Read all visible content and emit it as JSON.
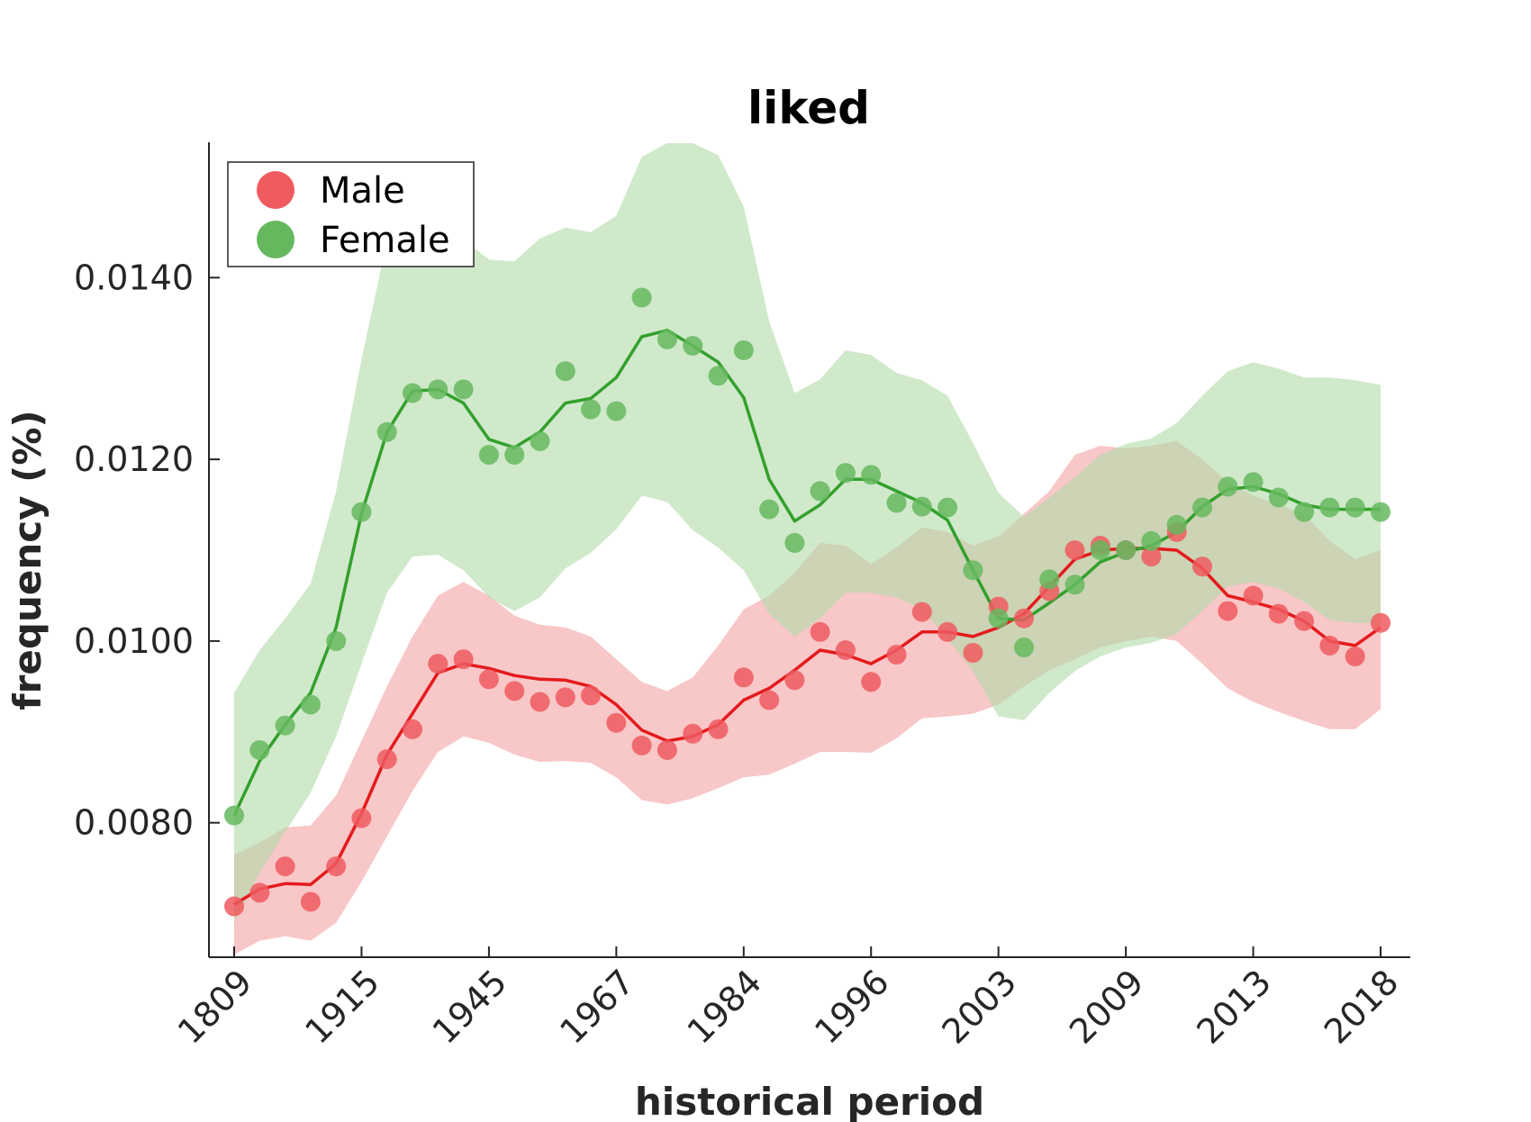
{
  "chart_data": {
    "type": "line",
    "title": "liked",
    "xlabel": "historical period",
    "ylabel": "frequency (%)",
    "x_tick_labels": [
      "1809",
      "1915",
      "1945",
      "1967",
      "1984",
      "1996",
      "2003",
      "2009",
      "2013",
      "2018"
    ],
    "y_ticks": [
      0.008,
      0.01,
      0.012,
      0.014
    ],
    "y_tick_labels": [
      "0.0080",
      "0.0100",
      "0.0120",
      "0.0140"
    ],
    "ylim": [
      0.00652,
      0.01549
    ],
    "grid": false,
    "legend_position": "top-left",
    "series": [
      {
        "name": "Male",
        "color": "#e41a1c",
        "point_color": "#ef5b5f",
        "band_color": "#f4a1a3",
        "points": [
          0.00708,
          0.00723,
          0.00752,
          0.00713,
          0.00752,
          0.00805,
          0.0087,
          0.00903,
          0.00975,
          0.0098,
          0.00958,
          0.00945,
          0.00933,
          0.00938,
          0.0094,
          0.0091,
          0.00885,
          0.0088,
          0.00898,
          0.00903,
          0.0096,
          0.00935,
          0.00957,
          0.0101,
          0.0099,
          0.00955,
          0.00985,
          0.01032,
          0.0101,
          0.00987,
          0.01038,
          0.01025,
          0.01055,
          0.011,
          0.01105,
          0.011,
          0.01093,
          0.0112,
          0.01082,
          0.01033,
          0.0105,
          0.0103,
          0.01022,
          0.00995,
          0.00983,
          0.0102
        ],
        "trend": [
          0.0071,
          0.00727,
          0.00733,
          0.00732,
          0.00755,
          0.0081,
          0.00875,
          0.0092,
          0.00965,
          0.00975,
          0.0097,
          0.00962,
          0.00958,
          0.00957,
          0.0095,
          0.0093,
          0.00902,
          0.0089,
          0.00895,
          0.00908,
          0.00935,
          0.00948,
          0.00968,
          0.0099,
          0.00985,
          0.00975,
          0.0099,
          0.0101,
          0.0101,
          0.01005,
          0.01015,
          0.0103,
          0.0106,
          0.0109,
          0.011,
          0.01102,
          0.01102,
          0.011,
          0.0108,
          0.0105,
          0.01043,
          0.01035,
          0.01022,
          0.01,
          0.00995,
          0.01015
        ],
        "band_upper": [
          0.00765,
          0.00778,
          0.00795,
          0.00797,
          0.0083,
          0.0089,
          0.0095,
          0.01005,
          0.0105,
          0.01065,
          0.0105,
          0.01028,
          0.01018,
          0.01015,
          0.01005,
          0.0098,
          0.00955,
          0.00945,
          0.0096,
          0.00995,
          0.01035,
          0.0105,
          0.01075,
          0.01108,
          0.01105,
          0.01085,
          0.01103,
          0.01125,
          0.0112,
          0.01105,
          0.01115,
          0.0114,
          0.01165,
          0.01205,
          0.01215,
          0.01212,
          0.01215,
          0.0122,
          0.012,
          0.01175,
          0.0116,
          0.0115,
          0.0114,
          0.0111,
          0.0109,
          0.011
        ],
        "band_lower": [
          0.00655,
          0.0067,
          0.00675,
          0.0067,
          0.0069,
          0.00735,
          0.00785,
          0.00835,
          0.00878,
          0.00895,
          0.00888,
          0.00875,
          0.00867,
          0.00868,
          0.00866,
          0.0085,
          0.00825,
          0.0082,
          0.00827,
          0.00838,
          0.0085,
          0.00853,
          0.00865,
          0.00878,
          0.00878,
          0.00877,
          0.00893,
          0.00915,
          0.00917,
          0.0092,
          0.0093,
          0.0095,
          0.00968,
          0.0098,
          0.00993,
          0.01,
          0.01005,
          0.01,
          0.00975,
          0.00948,
          0.00933,
          0.00922,
          0.00912,
          0.00903,
          0.00903,
          0.00925
        ]
      },
      {
        "name": "Female",
        "color": "#33a02c",
        "point_color": "#66b85f",
        "band_color": "#b0daa9",
        "points": [
          0.00808,
          0.0088,
          0.00907,
          0.0093,
          0.01,
          0.01142,
          0.0123,
          0.01273,
          0.01277,
          0.01277,
          0.01205,
          0.01205,
          0.0122,
          0.01297,
          0.01255,
          0.01253,
          0.01378,
          0.01332,
          0.01325,
          0.01292,
          0.0132,
          0.01145,
          0.01108,
          0.01165,
          0.01185,
          0.01183,
          0.01152,
          0.01148,
          0.01147,
          0.01078,
          0.01025,
          0.00993,
          0.01068,
          0.01062,
          0.011,
          0.011,
          0.0111,
          0.01128,
          0.01147,
          0.0117,
          0.01175,
          0.01158,
          0.01142,
          0.01147,
          0.01147,
          0.01142
        ],
        "trend": [
          0.00808,
          0.00868,
          0.00908,
          0.00943,
          0.01015,
          0.0114,
          0.0123,
          0.01275,
          0.01277,
          0.01262,
          0.01222,
          0.01213,
          0.0123,
          0.01262,
          0.01267,
          0.0129,
          0.01335,
          0.01342,
          0.01325,
          0.01307,
          0.01268,
          0.01178,
          0.01132,
          0.0115,
          0.01178,
          0.01178,
          0.01165,
          0.01152,
          0.01133,
          0.01078,
          0.01025,
          0.01023,
          0.01042,
          0.01062,
          0.01087,
          0.01098,
          0.01105,
          0.0112,
          0.01148,
          0.01167,
          0.0117,
          0.01162,
          0.0115,
          0.01145,
          0.01145,
          0.01145
        ],
        "band_upper": [
          0.00943,
          0.0099,
          0.01025,
          0.01063,
          0.01165,
          0.0131,
          0.0144,
          0.0146,
          0.01455,
          0.01442,
          0.0142,
          0.01418,
          0.01443,
          0.01455,
          0.0145,
          0.01468,
          0.01533,
          0.01548,
          0.01548,
          0.01535,
          0.01478,
          0.01352,
          0.01273,
          0.01288,
          0.0132,
          0.01315,
          0.01295,
          0.01287,
          0.0127,
          0.01218,
          0.01163,
          0.01137,
          0.01158,
          0.0118,
          0.01205,
          0.01217,
          0.01223,
          0.0124,
          0.0127,
          0.01297,
          0.01307,
          0.013,
          0.0129,
          0.0129,
          0.01287,
          0.01282
        ],
        "band_lower": [
          0.0069,
          0.00745,
          0.0079,
          0.00833,
          0.00895,
          0.00975,
          0.01053,
          0.01093,
          0.01095,
          0.01078,
          0.01048,
          0.01033,
          0.01048,
          0.0108,
          0.01097,
          0.01123,
          0.0116,
          0.01153,
          0.01122,
          0.01103,
          0.01078,
          0.0103,
          0.01005,
          0.01025,
          0.01053,
          0.01053,
          0.01048,
          0.01035,
          0.01002,
          0.00967,
          0.00917,
          0.00913,
          0.00943,
          0.00967,
          0.00983,
          0.00993,
          0.00998,
          0.01008,
          0.01033,
          0.0106,
          0.01065,
          0.01058,
          0.01043,
          0.01023,
          0.0102,
          0.0102
        ]
      }
    ]
  }
}
